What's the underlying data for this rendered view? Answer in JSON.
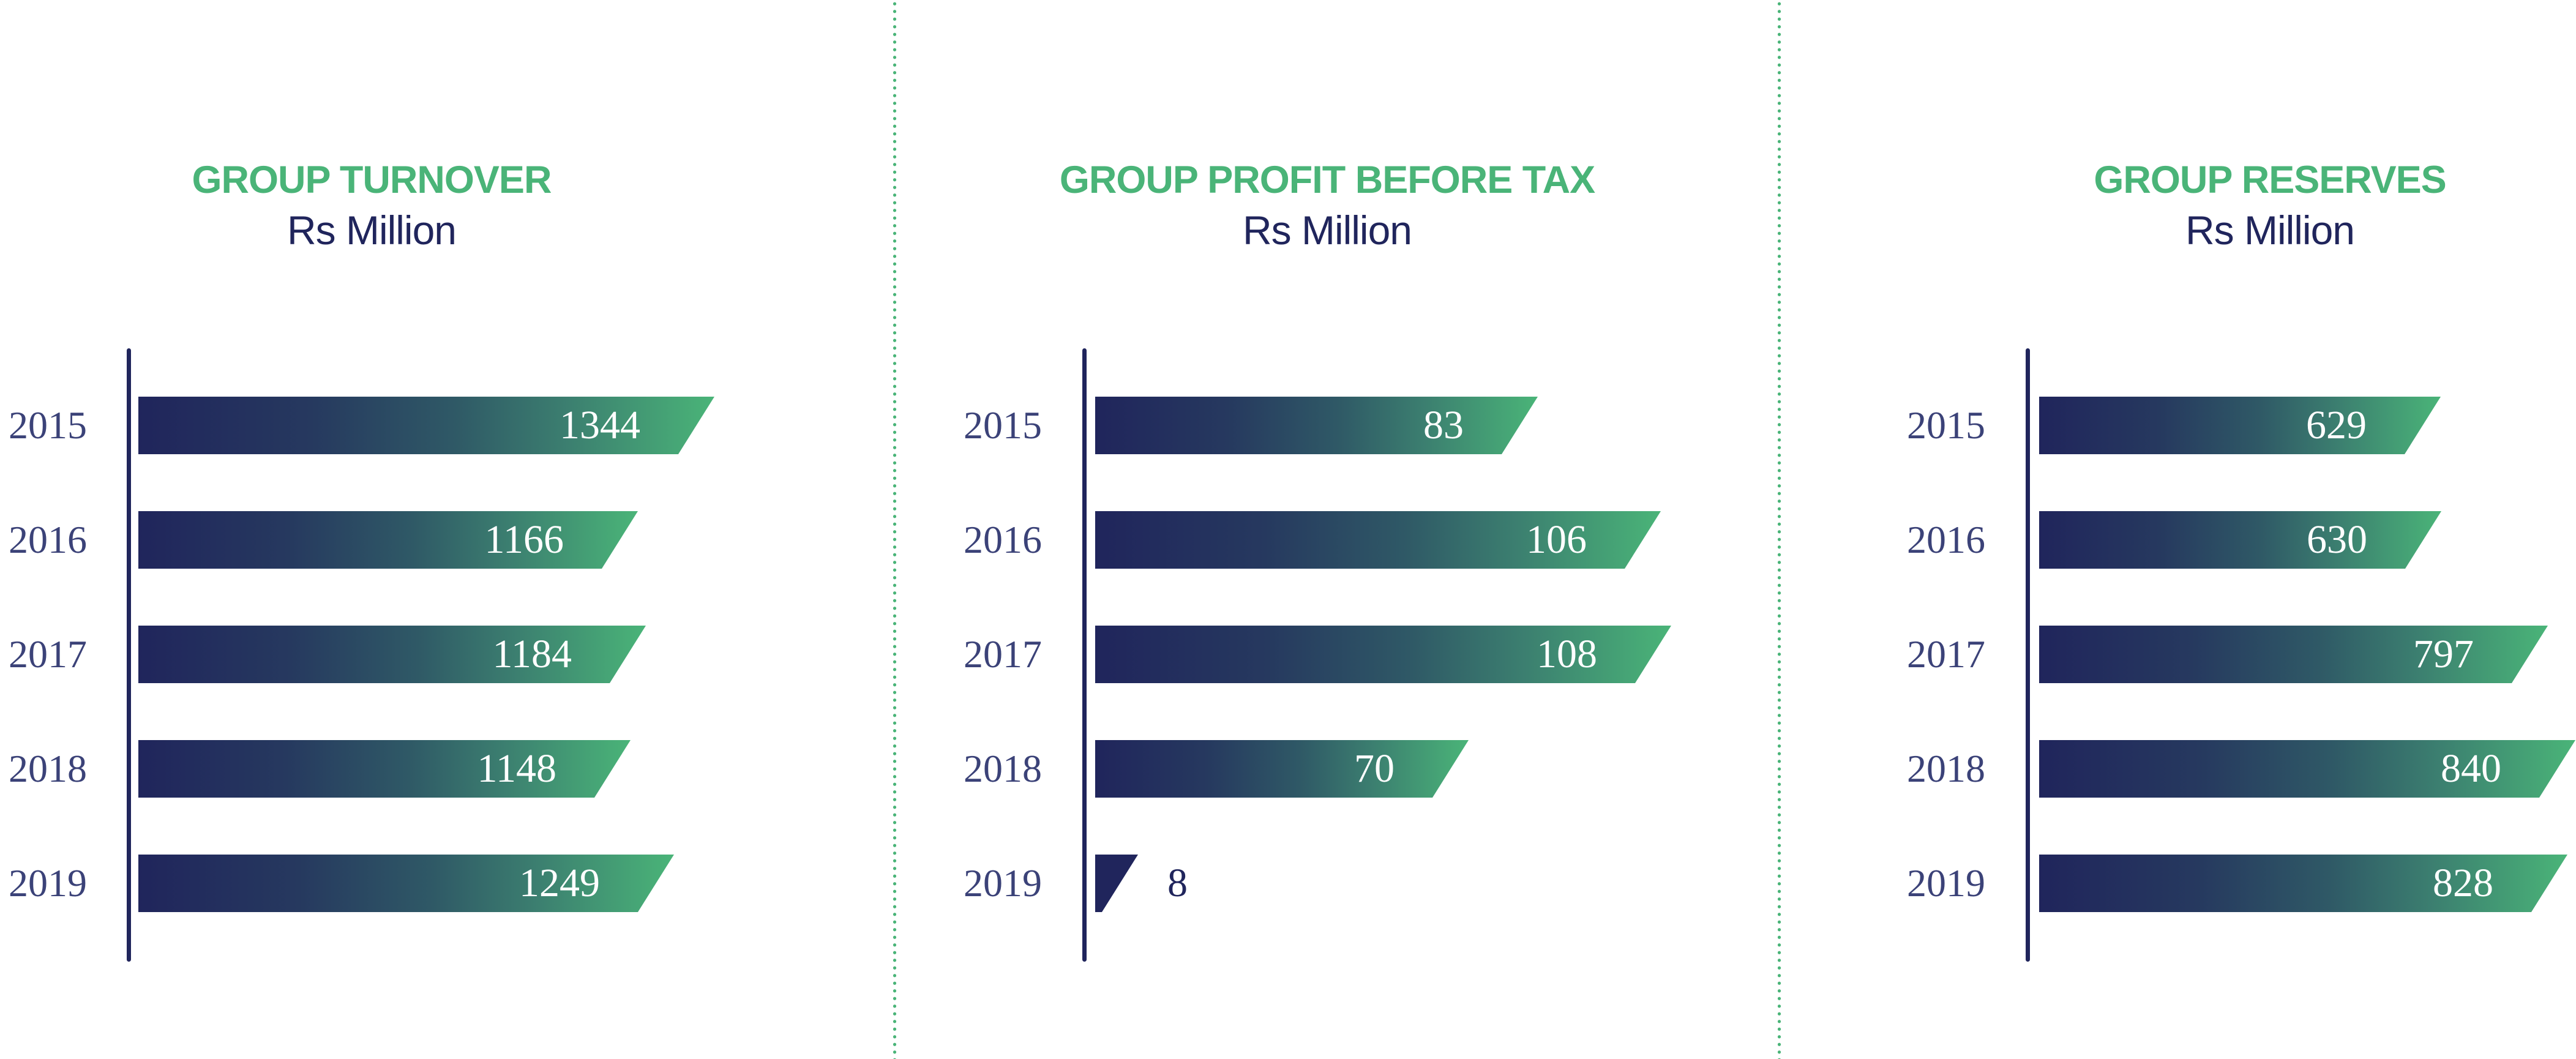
{
  "colors": {
    "title_green": "#4ab478",
    "navy": "#20255c",
    "year_label": "#3b4278",
    "bar_gradient_start": "#20255c",
    "bar_gradient_end": "#4ab478",
    "divider": "#4ab478"
  },
  "charts": [
    {
      "title": "GROUP TURNOVER",
      "subtitle": "Rs Million",
      "years": [
        "2015",
        "2016",
        "2017",
        "2018",
        "2019"
      ],
      "values": [
        "1344",
        "1166",
        "1184",
        "1148",
        "1249"
      ]
    },
    {
      "title": "GROUP PROFIT BEFORE TAX",
      "subtitle": "Rs Million",
      "years": [
        "2015",
        "2016",
        "2017",
        "2018",
        "2019"
      ],
      "values": [
        "83",
        "106",
        "108",
        "70",
        "8"
      ]
    },
    {
      "title": "GROUP RESERVES",
      "subtitle": "Rs Million",
      "years": [
        "2015",
        "2016",
        "2017",
        "2018",
        "2019"
      ],
      "values": [
        "629",
        "630",
        "797",
        "840",
        "828"
      ]
    }
  ],
  "chart_data": [
    {
      "type": "bar",
      "orientation": "horizontal",
      "title": "GROUP TURNOVER",
      "subtitle": "Rs Million",
      "xlabel": "",
      "ylabel": "",
      "categories": [
        "2015",
        "2016",
        "2017",
        "2018",
        "2019"
      ],
      "values": [
        1344,
        1166,
        1184,
        1148,
        1249
      ],
      "data_labels": true,
      "grid": false,
      "legend": null
    },
    {
      "type": "bar",
      "orientation": "horizontal",
      "title": "GROUP PROFIT BEFORE TAX",
      "subtitle": "Rs Million",
      "xlabel": "",
      "ylabel": "",
      "categories": [
        "2015",
        "2016",
        "2017",
        "2018",
        "2019"
      ],
      "values": [
        83,
        106,
        108,
        70,
        8
      ],
      "data_labels": true,
      "grid": false,
      "legend": null
    },
    {
      "type": "bar",
      "orientation": "horizontal",
      "title": "GROUP RESERVES",
      "subtitle": "Rs Million",
      "xlabel": "",
      "ylabel": "",
      "categories": [
        "2015",
        "2016",
        "2017",
        "2018",
        "2019"
      ],
      "values": [
        629,
        630,
        797,
        840,
        828
      ],
      "data_labels": true,
      "grid": false,
      "legend": null
    }
  ]
}
